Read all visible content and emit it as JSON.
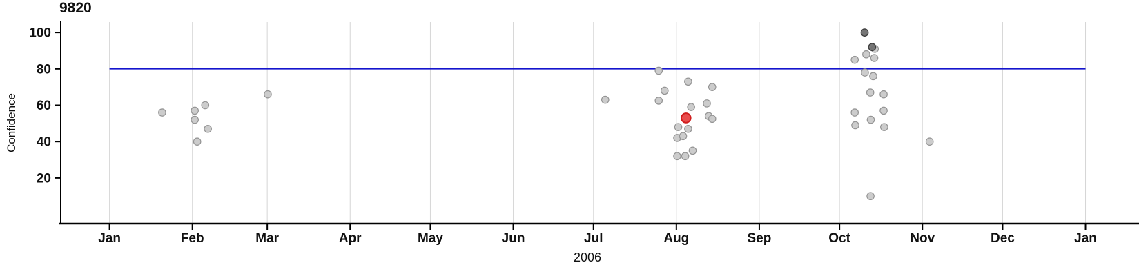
{
  "chart_data": {
    "type": "scatter",
    "title": "9820",
    "xlabel": "2006",
    "ylabel": "Confidence",
    "y_ticks": [
      20,
      40,
      60,
      80,
      100
    ],
    "ylim": [
      -5.1,
      106.5
    ],
    "xlim_days": [
      -19,
      385
    ],
    "grid": "vertical gridline at each month start",
    "legend": "none",
    "month_ticks": [
      {
        "label": "Jan",
        "day": 0
      },
      {
        "label": "Feb",
        "day": 31
      },
      {
        "label": "Mar",
        "day": 59
      },
      {
        "label": "Apr",
        "day": 90
      },
      {
        "label": "May",
        "day": 120
      },
      {
        "label": "Jun",
        "day": 151
      },
      {
        "label": "Jul",
        "day": 181
      },
      {
        "label": "Aug",
        "day": 212
      },
      {
        "label": "Sep",
        "day": 243
      },
      {
        "label": "Oct",
        "day": 273
      },
      {
        "label": "Nov",
        "day": 304
      },
      {
        "label": "Dec",
        "day": 334
      },
      {
        "label": "Jan",
        "day": 365
      }
    ],
    "threshold_line": {
      "value": 80,
      "span_days": [
        0,
        365
      ],
      "color": "#1515cd"
    },
    "point_styles": {
      "normal": {
        "fill": "#c9c9c9",
        "stroke": "#949494",
        "r": 5.2,
        "stroke_width": 1.2
      },
      "dark": {
        "fill": "#6f6f6f",
        "stroke": "#3d3d3d",
        "r": 5.2,
        "stroke_width": 1.3
      },
      "highlight": {
        "fill": "#e84444",
        "stroke": "#d01f1f",
        "r": 6.8,
        "stroke_width": 2
      }
    },
    "points": [
      {
        "date": "2006-01-20",
        "day": 19.7,
        "confidence": 56,
        "kind": "normal"
      },
      {
        "date": "2006-02-01",
        "day": 31.9,
        "confidence": 57,
        "kind": "normal"
      },
      {
        "date": "2006-02-05",
        "day": 35.8,
        "confidence": 60,
        "kind": "normal"
      },
      {
        "date": "2006-02-01",
        "day": 31.9,
        "confidence": 52,
        "kind": "normal"
      },
      {
        "date": "2006-02-06",
        "day": 36.8,
        "confidence": 47,
        "kind": "normal"
      },
      {
        "date": "2006-02-02",
        "day": 32.8,
        "confidence": 40,
        "kind": "normal"
      },
      {
        "date": "2006-03-01",
        "day": 59.2,
        "confidence": 66,
        "kind": "normal"
      },
      {
        "date": "2006-07-05",
        "day": 185.4,
        "confidence": 63,
        "kind": "normal"
      },
      {
        "date": "2006-07-25",
        "day": 205.4,
        "confidence": 79,
        "kind": "normal"
      },
      {
        "date": "2006-07-25",
        "day": 205.4,
        "confidence": 62.5,
        "kind": "normal"
      },
      {
        "date": "2006-07-27",
        "day": 207.6,
        "confidence": 68,
        "kind": "normal"
      },
      {
        "date": "2006-08-04",
        "day": 216.4,
        "confidence": 73,
        "kind": "normal"
      },
      {
        "date": "2006-08-13",
        "day": 225.4,
        "confidence": 70,
        "kind": "normal"
      },
      {
        "date": "2006-08-06",
        "day": 217.5,
        "confidence": 59,
        "kind": "normal"
      },
      {
        "date": "2006-08-04",
        "day": 215.6,
        "confidence": 53,
        "kind": "highlight"
      },
      {
        "date": "2006-08-11",
        "day": 223.4,
        "confidence": 61,
        "kind": "normal"
      },
      {
        "date": "2006-08-12",
        "day": 224.1,
        "confidence": 54,
        "kind": "normal"
      },
      {
        "date": "2006-08-13",
        "day": 225.4,
        "confidence": 52.5,
        "kind": "normal"
      },
      {
        "date": "2006-08-01",
        "day": 212.7,
        "confidence": 48,
        "kind": "normal"
      },
      {
        "date": "2006-08-04",
        "day": 216.4,
        "confidence": 47,
        "kind": "normal"
      },
      {
        "date": "2006-07-31",
        "day": 212.3,
        "confidence": 42,
        "kind": "normal"
      },
      {
        "date": "2006-08-02",
        "day": 214.5,
        "confidence": 43,
        "kind": "normal"
      },
      {
        "date": "2006-08-06",
        "day": 218.1,
        "confidence": 35,
        "kind": "normal"
      },
      {
        "date": "2006-07-31",
        "day": 212.3,
        "confidence": 32,
        "kind": "normal"
      },
      {
        "date": "2006-08-03",
        "day": 215.3,
        "confidence": 32,
        "kind": "normal"
      },
      {
        "date": "2006-10-09",
        "day": 282.4,
        "confidence": 100,
        "kind": "dark"
      },
      {
        "date": "2006-10-12",
        "day": 285.2,
        "confidence": 92,
        "kind": "dark"
      },
      {
        "date": "2006-10-13",
        "day": 286.2,
        "confidence": 91,
        "kind": "normal"
      },
      {
        "date": "2006-10-10",
        "day": 283.0,
        "confidence": 88,
        "kind": "normal"
      },
      {
        "date": "2006-10-13",
        "day": 286.0,
        "confidence": 86,
        "kind": "normal"
      },
      {
        "date": "2006-10-05",
        "day": 278.7,
        "confidence": 85,
        "kind": "normal"
      },
      {
        "date": "2006-10-09",
        "day": 282.5,
        "confidence": 78,
        "kind": "normal"
      },
      {
        "date": "2006-10-12",
        "day": 285.6,
        "confidence": 76,
        "kind": "normal"
      },
      {
        "date": "2006-10-11",
        "day": 284.5,
        "confidence": 67,
        "kind": "normal"
      },
      {
        "date": "2006-10-16",
        "day": 289.5,
        "confidence": 66,
        "kind": "normal"
      },
      {
        "date": "2006-10-05",
        "day": 278.7,
        "confidence": 56,
        "kind": "normal"
      },
      {
        "date": "2006-10-16",
        "day": 289.5,
        "confidence": 57,
        "kind": "normal"
      },
      {
        "date": "2006-10-11",
        "day": 284.7,
        "confidence": 52,
        "kind": "normal"
      },
      {
        "date": "2006-10-05",
        "day": 278.9,
        "confidence": 49,
        "kind": "normal"
      },
      {
        "date": "2006-10-16",
        "day": 289.7,
        "confidence": 48,
        "kind": "normal"
      },
      {
        "date": "2006-10-11",
        "day": 284.6,
        "confidence": 10,
        "kind": "normal"
      },
      {
        "date": "2006-11-02",
        "day": 306.7,
        "confidence": 40,
        "kind": "normal"
      }
    ],
    "other_colors": {
      "gridline": "#d6d6d6",
      "axis": "#000000",
      "tick_text": "#111111"
    }
  }
}
